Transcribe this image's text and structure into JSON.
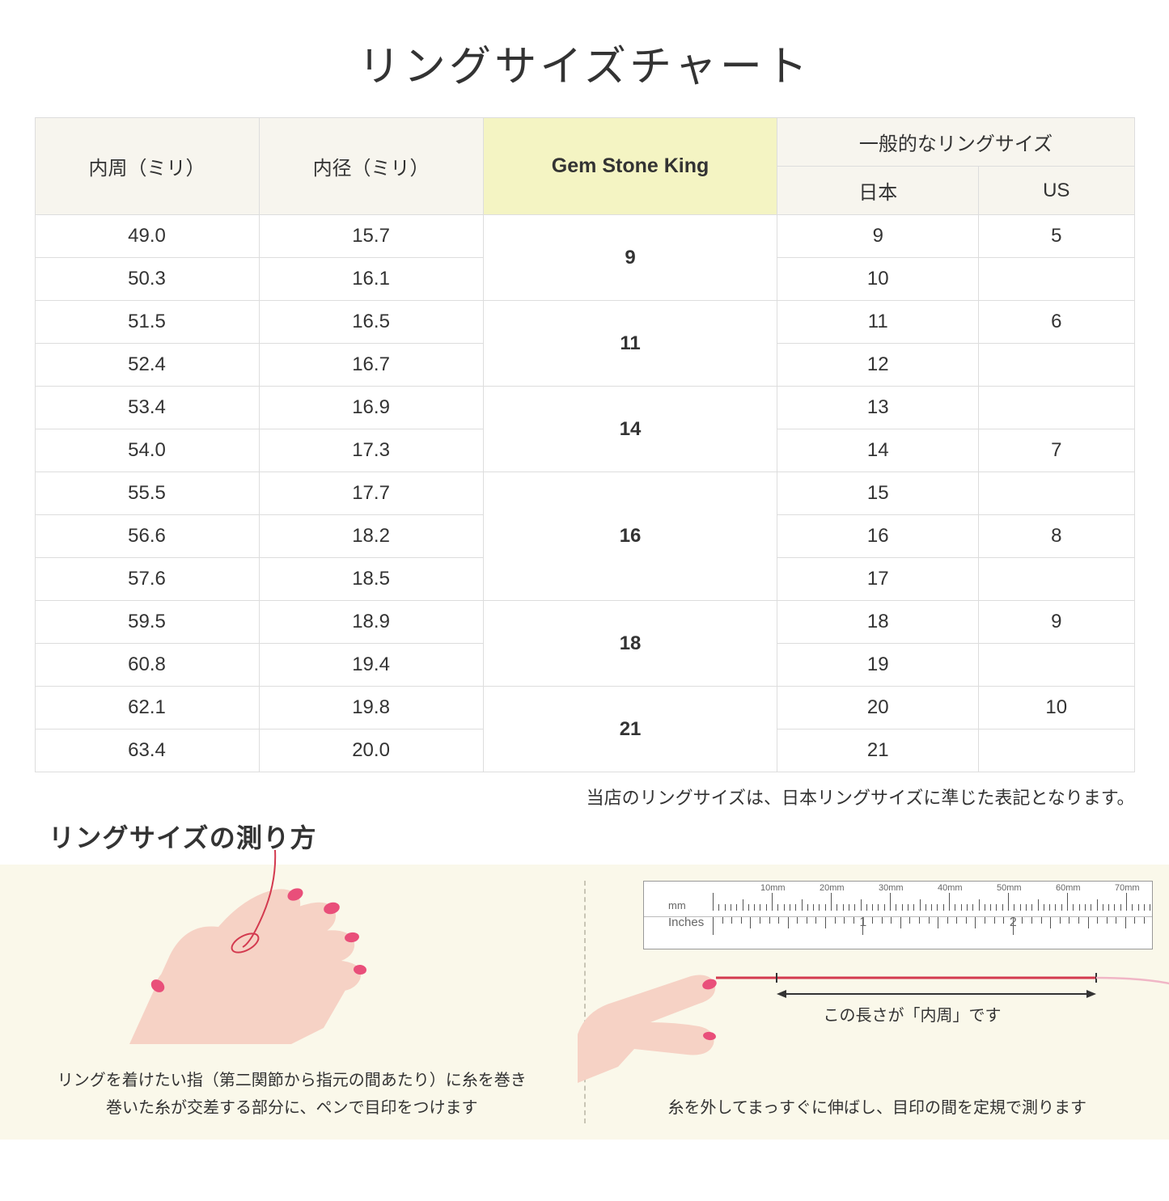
{
  "title": "リングサイズチャート",
  "headers": {
    "circumference": "内周（ミリ）",
    "diameter": "内径（ミリ）",
    "gsk": "Gem Stone King",
    "general": "一般的なリングサイズ",
    "japan": "日本",
    "us": "US"
  },
  "table": {
    "header_bg": "#f7f5ee",
    "gsk_header_bg": "#f4f4c3",
    "border_color": "#dddddd",
    "font_size": 24
  },
  "groups": [
    {
      "gsk": "9",
      "rows": [
        {
          "c": "49.0",
          "d": "15.7",
          "jp": "9",
          "us": "5"
        },
        {
          "c": "50.3",
          "d": "16.1",
          "jp": "10",
          "us": ""
        }
      ]
    },
    {
      "gsk": "11",
      "rows": [
        {
          "c": "51.5",
          "d": "16.5",
          "jp": "11",
          "us": "6"
        },
        {
          "c": "52.4",
          "d": "16.7",
          "jp": "12",
          "us": ""
        }
      ]
    },
    {
      "gsk": "14",
      "rows": [
        {
          "c": "53.4",
          "d": "16.9",
          "jp": "13",
          "us": ""
        },
        {
          "c": "54.0",
          "d": "17.3",
          "jp": "14",
          "us": "7"
        }
      ]
    },
    {
      "gsk": "16",
      "rows": [
        {
          "c": "55.5",
          "d": "17.7",
          "jp": "15",
          "us": ""
        },
        {
          "c": "56.6",
          "d": "18.2",
          "jp": "16",
          "us": "8"
        },
        {
          "c": "57.6",
          "d": "18.5",
          "jp": "17",
          "us": ""
        }
      ]
    },
    {
      "gsk": "18",
      "rows": [
        {
          "c": "59.5",
          "d": "18.9",
          "jp": "18",
          "us": "9"
        },
        {
          "c": "60.8",
          "d": "19.4",
          "jp": "19",
          "us": ""
        }
      ]
    },
    {
      "gsk": "21",
      "rows": [
        {
          "c": "62.1",
          "d": "19.8",
          "jp": "20",
          "us": "10"
        },
        {
          "c": "63.4",
          "d": "20.0",
          "jp": "21",
          "us": ""
        }
      ]
    }
  ],
  "note": "当店のリングサイズは、日本リングサイズに準じた表記となります。",
  "howto": {
    "title": "リングサイズの測り方",
    "bg": "#faf8ea",
    "step1": "リングを着けたい指（第二関節から指元の間あたり）に糸を巻き\n巻いた糸が交差する部分に、ペンで目印をつけます",
    "step2": "糸を外してまっすぐに伸ばし、目印の間を定規で測ります",
    "arrow_label": "この長さが「内周」です"
  },
  "ruler": {
    "mm_unit": "mm",
    "in_unit": "Inches",
    "mm_labels": [
      "10mm",
      "20mm",
      "30mm",
      "40mm",
      "50mm",
      "60mm",
      "70mm"
    ],
    "in_labels": [
      "1",
      "2"
    ]
  },
  "colors": {
    "skin": "#f6d2c5",
    "skin_dark": "#e9b7a8",
    "nail": "#e94f7a",
    "thread": "#d33a4f",
    "thread_swirl": "#f0b6c6",
    "arrow": "#333333"
  }
}
